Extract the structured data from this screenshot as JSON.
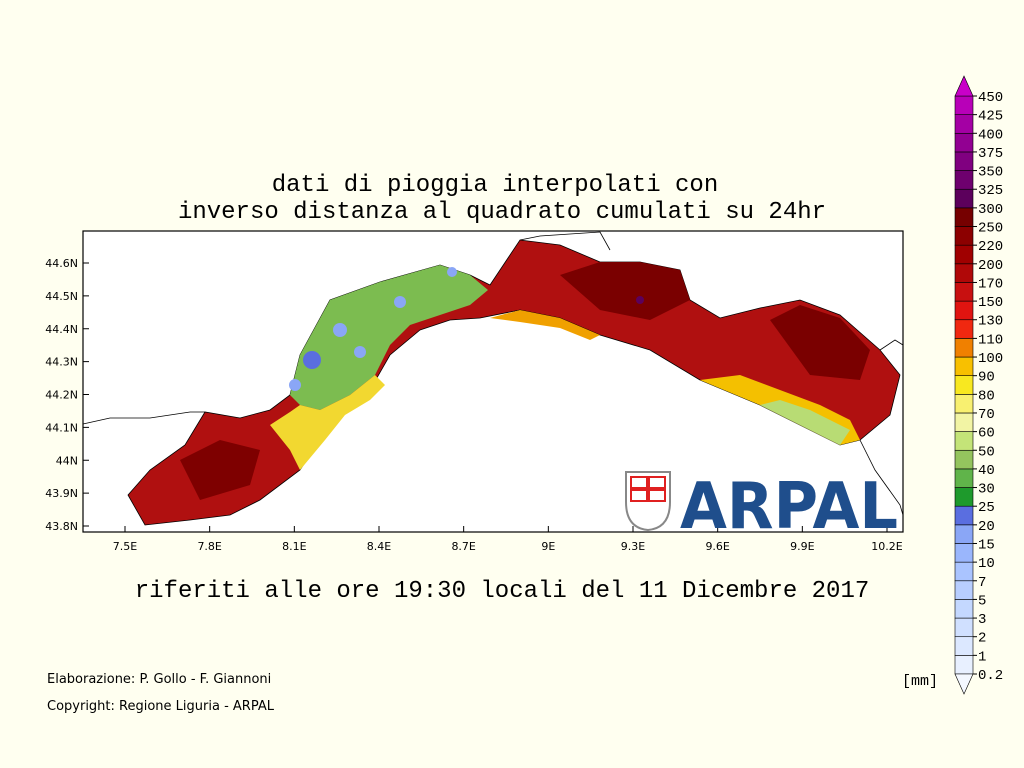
{
  "title": [
    "dati di pioggia interpolati con",
    "inverso distanza al quadrato cumulati su 24hr"
  ],
  "subtitle": "riferiti alle ore 19:30 locali del 11 Dicembre 2017",
  "map": {
    "xticks": [
      {
        "value": 7.5,
        "label": "7.5E"
      },
      {
        "value": 7.8,
        "label": "7.8E"
      },
      {
        "value": 8.1,
        "label": "8.1E"
      },
      {
        "value": 8.4,
        "label": "8.4E"
      },
      {
        "value": 8.7,
        "label": "8.7E"
      },
      {
        "value": 9,
        "label": "9E"
      },
      {
        "value": 9.3,
        "label": "9.3E"
      },
      {
        "value": 9.6,
        "label": "9.6E"
      },
      {
        "value": 9.9,
        "label": "9.9E"
      },
      {
        "value": 10.2,
        "label": "10.2E"
      }
    ],
    "yticks": [
      {
        "value": 44.6,
        "label": "44.6N"
      },
      {
        "value": 44.5,
        "label": "44.5N"
      },
      {
        "value": 44.4,
        "label": "44.4N"
      },
      {
        "value": 44.3,
        "label": "44.3N"
      },
      {
        "value": 44.2,
        "label": "44.2N"
      },
      {
        "value": 44.1,
        "label": "44.1N"
      },
      {
        "value": 44,
        "label": "44N"
      },
      {
        "value": 43.9,
        "label": "43.9N"
      },
      {
        "value": 43.8,
        "label": "43.8N"
      }
    ]
  },
  "colorbar": {
    "unit": "[mm]",
    "levels": [
      0.2,
      1,
      2,
      3,
      5,
      7,
      10,
      15,
      20,
      25,
      30,
      40,
      50,
      60,
      70,
      80,
      90,
      100,
      110,
      130,
      150,
      170,
      200,
      220,
      250,
      300,
      325,
      350,
      375,
      400,
      425,
      450
    ],
    "colors": [
      "#e8f0ff",
      "#dce8ff",
      "#d0e0ff",
      "#c4d8ff",
      "#b8ceff",
      "#aac4ff",
      "#9ab6fc",
      "#8aa6f6",
      "#5a6ee0",
      "#1e9a2c",
      "#60b44a",
      "#94c45e",
      "#c4e478",
      "#f2f4a4",
      "#f8f070",
      "#f8e820",
      "#f8c000",
      "#f08000",
      "#f02810",
      "#e01410",
      "#c81010",
      "#b00808",
      "#a00000",
      "#8c0000",
      "#760000",
      "#5c005c",
      "#6e006e",
      "#800080",
      "#920092",
      "#a400a4",
      "#b800b8"
    ],
    "over_color": "#c800c8",
    "under_color": "#f4f8ff"
  },
  "credits": [
    "Elaborazione: P. Gollo - F. Giannoni",
    "Copyright: Regione Liguria - ARPAL"
  ],
  "logo": "ARPAL"
}
